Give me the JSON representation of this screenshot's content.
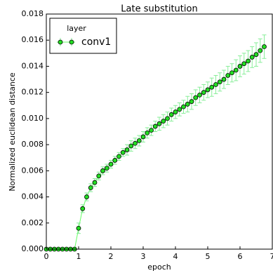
{
  "chart_data": {
    "type": "line",
    "title": "Late substitution",
    "xlabel": "epoch",
    "ylabel": "Normalized euclidean distance",
    "x": [
      0,
      0.125,
      0.25,
      0.375,
      0.5,
      0.625,
      0.75,
      0.875,
      1,
      1.125,
      1.25,
      1.375,
      1.5,
      1.625,
      1.75,
      1.875,
      2,
      2.125,
      2.25,
      2.375,
      2.5,
      2.625,
      2.75,
      2.875,
      3,
      3.125,
      3.25,
      3.375,
      3.5,
      3.625,
      3.75,
      3.875,
      4,
      4.125,
      4.25,
      4.375,
      4.5,
      4.625,
      4.75,
      4.875,
      5,
      5.125,
      5.25,
      5.375,
      5.5,
      5.625,
      5.75,
      5.875,
      6,
      6.125,
      6.25,
      6.375,
      6.5,
      6.625,
      6.75
    ],
    "series": [
      {
        "name": "conv1",
        "color": "#22dd22",
        "line_color": "#66ff66",
        "error_color": "#88ee99",
        "values": [
          0,
          0,
          0,
          0,
          0,
          0,
          0,
          0,
          0.0016,
          0.0031,
          0.004,
          0.0047,
          0.0051,
          0.0056,
          0.006,
          0.0062,
          0.0065,
          0.0068,
          0.0071,
          0.0074,
          0.0076,
          0.0079,
          0.0081,
          0.0083,
          0.0086,
          0.0089,
          0.0091,
          0.0094,
          0.0096,
          0.0098,
          0.01,
          0.0103,
          0.0105,
          0.0107,
          0.0109,
          0.0111,
          0.0113,
          0.0116,
          0.0118,
          0.012,
          0.0122,
          0.0124,
          0.0126,
          0.0128,
          0.013,
          0.0133,
          0.0135,
          0.0137,
          0.014,
          0.0142,
          0.0144,
          0.0147,
          0.0149,
          0.0152,
          0.0155
        ],
        "errors": [
          0,
          0,
          0,
          0,
          0,
          0,
          0,
          0,
          0.0004,
          0.0003,
          0.0003,
          0.0003,
          0.0003,
          0.0003,
          0.0003,
          0.0003,
          0.0003,
          0.0003,
          0.0003,
          0.0003,
          0.0004,
          0.0004,
          0.0004,
          0.0004,
          0.0004,
          0.0004,
          0.0004,
          0.0004,
          0.0005,
          0.0005,
          0.0005,
          0.0005,
          0.0005,
          0.0005,
          0.0005,
          0.0006,
          0.0006,
          0.0006,
          0.0006,
          0.0006,
          0.0006,
          0.0007,
          0.0007,
          0.0007,
          0.0007,
          0.0007,
          0.0007,
          0.0008,
          0.0008,
          0.0008,
          0.0008,
          0.0008,
          0.0009,
          0.0009,
          0.0009
        ]
      }
    ],
    "legend_title": "layer",
    "legend": "upper left",
    "xlim": [
      0,
      7
    ],
    "xticks": [
      0,
      1,
      2,
      3,
      4,
      5,
      6,
      7
    ],
    "ylim": [
      0,
      0.018
    ],
    "yticks": [
      {
        "value": 0,
        "label": "0.000"
      },
      {
        "value": 0.002,
        "label": "0.002"
      },
      {
        "value": 0.004,
        "label": "0.004"
      },
      {
        "value": 0.006,
        "label": "0.006"
      },
      {
        "value": 0.008,
        "label": "0.008"
      },
      {
        "value": 0.01,
        "label": "0.010"
      },
      {
        "value": 0.012,
        "label": "0.012"
      },
      {
        "value": 0.014,
        "label": "0.014"
      },
      {
        "value": 0.016,
        "label": "0.016"
      },
      {
        "value": 0.018,
        "label": "0.018"
      }
    ],
    "grid": false
  }
}
